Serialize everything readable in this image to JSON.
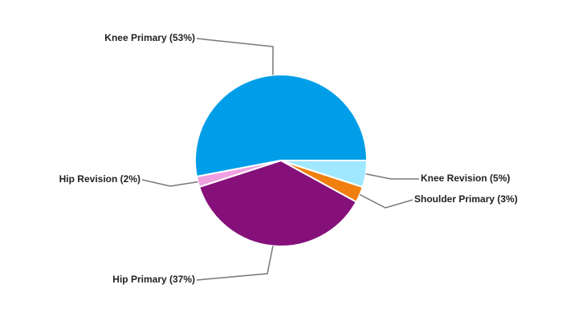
{
  "chart_data": {
    "type": "pie",
    "categories": [
      "Knee Primary (53%)",
      "Hip Revision (2%)",
      "Hip Primary (37%)",
      "Shoulder Primary (3%)",
      "Knee Revision (5%)"
    ],
    "values": [
      53,
      2,
      37,
      3,
      5
    ],
    "colors": [
      "#009ee8",
      "#f0a0e0",
      "#85107a",
      "#f07f10",
      "#a0e8ff"
    ]
  }
}
